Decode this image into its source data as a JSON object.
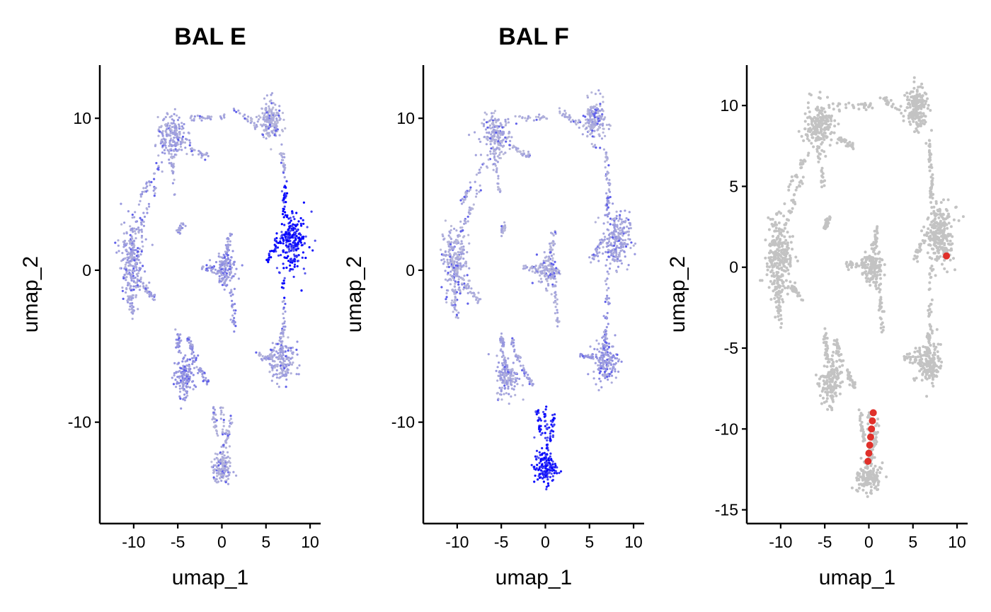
{
  "chart_data": [
    {
      "type": "scatter",
      "title": "BAL E",
      "xlabel": "umap_1",
      "ylabel": "umap_2",
      "xlim": [
        -13.2,
        11.2
      ],
      "ylim": [
        -16.3,
        13.5
      ],
      "xticks": [
        -10,
        -5,
        0,
        5,
        10
      ],
      "yticks": [
        -10,
        0,
        10
      ],
      "grid": false,
      "color_scale": {
        "low": "#d3d3d3",
        "high": "#0000ff"
      },
      "clusters": [
        {
          "x": -10.2,
          "y": 0.5,
          "expression": 0.25
        },
        {
          "x": -5.5,
          "y": 8.8,
          "expression": 0.25
        },
        {
          "x": 5.5,
          "y": 9.8,
          "expression": 0.2
        },
        {
          "x": 8.0,
          "y": 2.0,
          "expression": 1.0
        },
        {
          "x": 0.4,
          "y": 0.0,
          "expression": 0.3
        },
        {
          "x": -4.3,
          "y": -7.0,
          "expression": 0.3
        },
        {
          "x": 6.8,
          "y": -6.0,
          "expression": 0.25
        },
        {
          "x": 0.0,
          "y": -13.0,
          "expression": 0.2
        }
      ]
    },
    {
      "type": "scatter",
      "title": "BAL F",
      "xlabel": "umap_1",
      "ylabel": "umap_2",
      "xlim": [
        -13.2,
        11.2
      ],
      "ylim": [
        -16.3,
        13.5
      ],
      "xticks": [
        -10,
        -5,
        0,
        5,
        10
      ],
      "yticks": [
        -10,
        0,
        10
      ],
      "grid": false,
      "color_scale": {
        "low": "#d3d3d3",
        "high": "#0000ff"
      },
      "clusters": [
        {
          "x": -10.2,
          "y": 0.5,
          "expression": 0.2
        },
        {
          "x": -5.5,
          "y": 8.8,
          "expression": 0.2
        },
        {
          "x": 5.5,
          "y": 9.8,
          "expression": 0.2
        },
        {
          "x": 8.0,
          "y": 2.0,
          "expression": 0.25
        },
        {
          "x": 0.4,
          "y": 0.0,
          "expression": 0.2
        },
        {
          "x": -4.3,
          "y": -7.0,
          "expression": 0.25
        },
        {
          "x": 6.8,
          "y": -6.0,
          "expression": 0.3
        },
        {
          "x": 0.0,
          "y": -13.0,
          "expression": 1.0
        }
      ]
    },
    {
      "type": "scatter",
      "title": "",
      "xlabel": "umap_1",
      "ylabel": "umap_2",
      "xlim": [
        -13.2,
        11.2
      ],
      "ylim": [
        -15.5,
        12.5
      ],
      "xticks": [
        -10,
        -5,
        0,
        5,
        10
      ],
      "yticks": [
        -15,
        -10,
        -5,
        0,
        5,
        10
      ],
      "grid": false,
      "base_color": "#c3c3c3",
      "highlight_color": "#e0302a",
      "highlighted_cells": [
        {
          "x": 0.5,
          "y": -9.0
        },
        {
          "x": 0.4,
          "y": -9.5
        },
        {
          "x": 0.3,
          "y": -10.0
        },
        {
          "x": 0.2,
          "y": -10.5
        },
        {
          "x": 0.1,
          "y": -11.0
        },
        {
          "x": 0.0,
          "y": -11.5
        },
        {
          "x": -0.1,
          "y": -12.0
        },
        {
          "x": 8.8,
          "y": 0.7
        }
      ]
    }
  ]
}
